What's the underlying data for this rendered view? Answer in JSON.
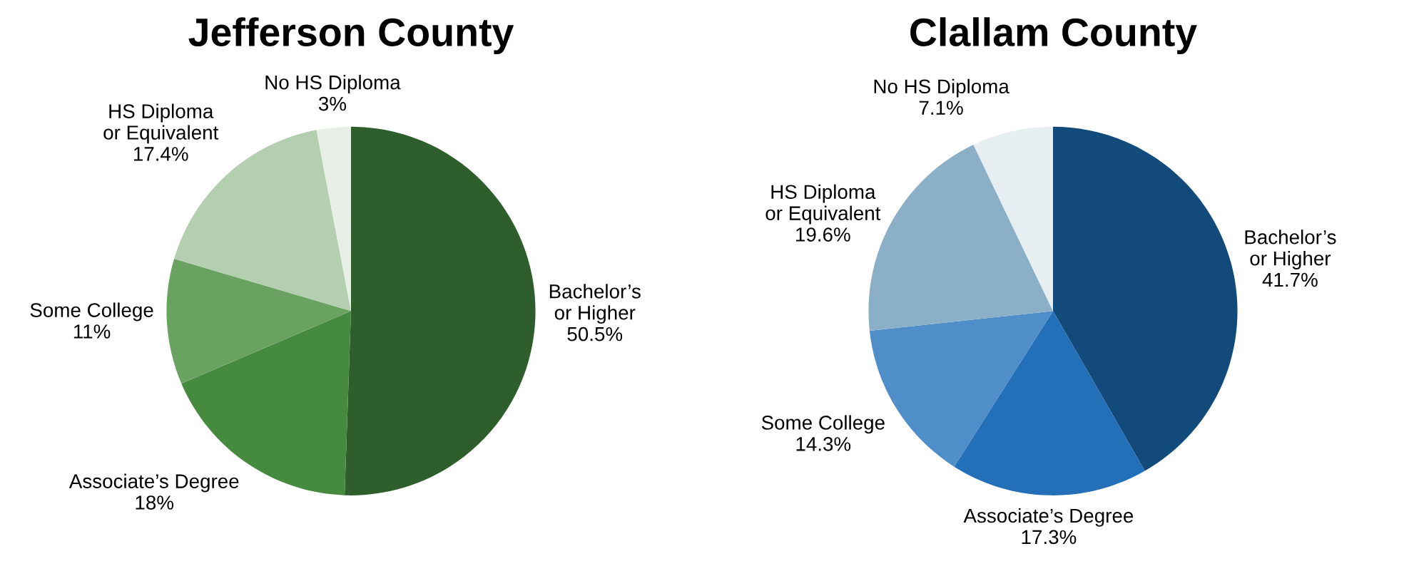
{
  "chart_data": [
    {
      "type": "pie",
      "title": "Jefferson County",
      "categories": [
        "Bachelor’s\nor Higher",
        "Associate’s Degree",
        "Some College",
        "HS Diploma\nor Equivalent",
        "No HS Diploma"
      ],
      "values": [
        50.5,
        18,
        11,
        17.4,
        3
      ],
      "value_labels": [
        "50.5%",
        "18%",
        "11%",
        "17.4%",
        "3%"
      ],
      "colors": [
        "#2e5e2c",
        "#468a3f",
        "#6aa262",
        "#b4cfb0",
        "#e8efe6"
      ],
      "legend": false
    },
    {
      "type": "pie",
      "title": "Clallam County",
      "categories": [
        "Bachelor’s\nor Higher",
        "Associate’s Degree",
        "Some College",
        "HS Diploma\nor Equivalent",
        "No HS Diploma"
      ],
      "values": [
        41.7,
        17.3,
        14.3,
        19.6,
        7.1
      ],
      "value_labels": [
        "41.7%",
        "17.3%",
        "14.3%",
        "19.6%",
        "7.1%"
      ],
      "colors": [
        "#134a7c",
        "#2470b8",
        "#4f8ec9",
        "#8aafc6",
        "#e6eef2"
      ],
      "legend": false
    }
  ]
}
